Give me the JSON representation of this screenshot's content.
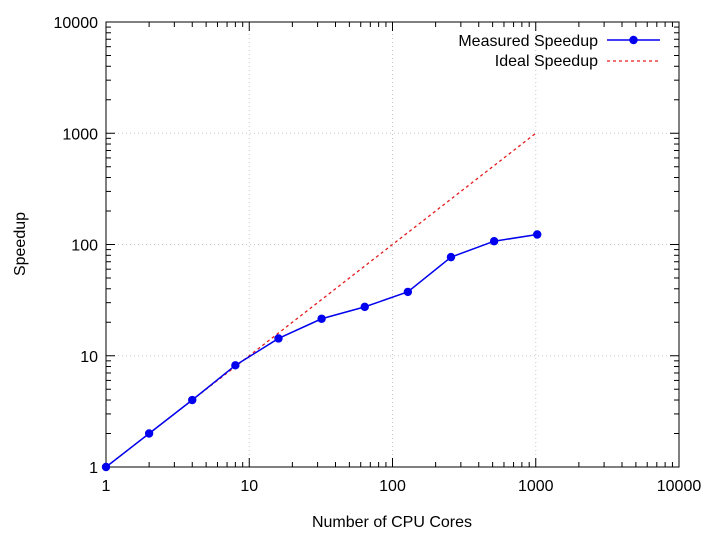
{
  "chart_data": {
    "type": "line",
    "xlabel": "Number of CPU Cores",
    "ylabel": "Speedup",
    "xscale": "log",
    "yscale": "log",
    "xlim": [
      1,
      10000
    ],
    "ylim": [
      1,
      10000
    ],
    "grid": true,
    "legend_position": "top-right",
    "x_ticks": [
      1,
      10,
      100,
      1000,
      10000
    ],
    "x_tick_labels": [
      "1",
      "10",
      "100",
      "1000",
      "10000"
    ],
    "y_ticks": [
      1,
      10,
      100,
      1000,
      10000
    ],
    "y_tick_labels": [
      "1",
      "10",
      "100",
      "1000",
      "10000"
    ],
    "series": [
      {
        "name": "Measured Speedup",
        "style": "solid-with-circles",
        "color": "#0000ee",
        "x": [
          1,
          2,
          4,
          8,
          16,
          32,
          64,
          128,
          256,
          512,
          1024
        ],
        "y": [
          1,
          2,
          4,
          8.2,
          14.3,
          21.5,
          27.5,
          37.5,
          77,
          107,
          123
        ]
      },
      {
        "name": "Ideal Speedup",
        "style": "dashed",
        "color": "#e41a1c",
        "x": [
          1,
          2,
          4,
          8,
          16,
          32,
          64,
          128,
          256,
          512,
          1024
        ],
        "y": [
          1,
          2,
          4,
          8,
          16,
          32,
          64,
          128,
          256,
          512,
          1024
        ]
      }
    ]
  }
}
